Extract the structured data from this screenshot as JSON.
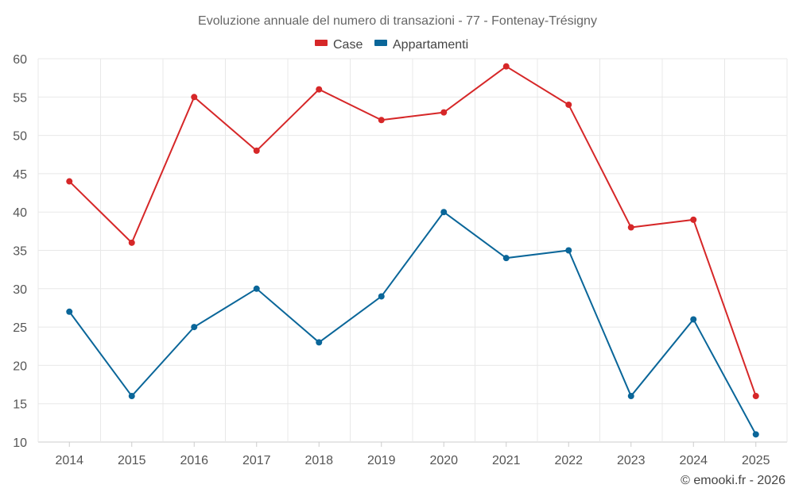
{
  "chart_data": {
    "type": "line",
    "title": "Evoluzione annuale del numero di transazioni - 77 - Fontenay-Trésigny",
    "categories": [
      "2014",
      "2015",
      "2016",
      "2017",
      "2018",
      "2019",
      "2020",
      "2021",
      "2022",
      "2023",
      "2024",
      "2025"
    ],
    "series": [
      {
        "name": "Case",
        "color": "#d62728",
        "values": [
          44,
          36,
          55,
          48,
          56,
          52,
          53,
          59,
          54,
          38,
          39,
          16
        ]
      },
      {
        "name": "Appartamenti",
        "color": "#0a6699",
        "values": [
          27,
          16,
          25,
          30,
          23,
          29,
          40,
          34,
          35,
          16,
          26,
          11
        ]
      }
    ],
    "ylim": [
      10,
      60
    ],
    "yticks": [
      10,
      15,
      20,
      25,
      30,
      35,
      40,
      45,
      50,
      55,
      60
    ],
    "grid": true,
    "legend_position": "top-center",
    "xlabel": "",
    "ylabel": ""
  },
  "credit": "© emooki.fr - 2026"
}
